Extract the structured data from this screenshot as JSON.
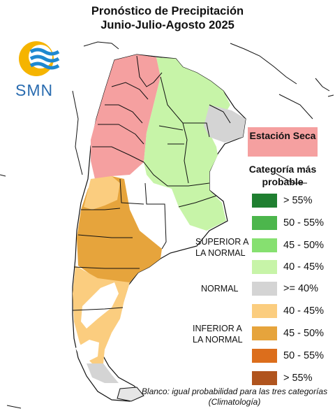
{
  "header": {
    "title_line1": "Pronóstico de Precipitación",
    "title_line2": "Junio-Julio-Agosto 2025"
  },
  "logo": {
    "name": "smn-logo",
    "text": "SMN",
    "sun_color": "#f5b400",
    "wave_color": "#1e88d0"
  },
  "map": {
    "region": "Argentina",
    "colors": {
      "dry_season": "#f5a0a0",
      "sup_40_45": "#c7f4a8",
      "normal": "#d4d4d4",
      "inf_40_45": "#fbcd7f",
      "inf_45_50": "#e6a43c"
    }
  },
  "legend": {
    "dry_season_label": "Estación Seca",
    "title": "Categoría más probable",
    "groups": {
      "superior": "SUPERIOR A LA NORMAL",
      "normal": "NORMAL",
      "inferior": "INFERIOR A LA NORMAL"
    },
    "items": [
      {
        "label": "> 55%",
        "color": "#1f7f30"
      },
      {
        "label": "50 - 55%",
        "color": "#4cb64c"
      },
      {
        "label": "45 - 50%",
        "color": "#86e070"
      },
      {
        "label": "40 - 45%",
        "color": "#c7f4a8"
      },
      {
        "label": ">= 40%",
        "color": "#d4d4d4"
      },
      {
        "label": "40 - 45%",
        "color": "#fbcd7f"
      },
      {
        "label": "45 - 50%",
        "color": "#e6a43c"
      },
      {
        "label": "50 - 55%",
        "color": "#dc6e1c"
      },
      {
        "label": "> 55%",
        "color": "#b0541e"
      }
    ]
  },
  "footnote": "Blanco: igual probabilidad para las tres categorías (Climatología)"
}
